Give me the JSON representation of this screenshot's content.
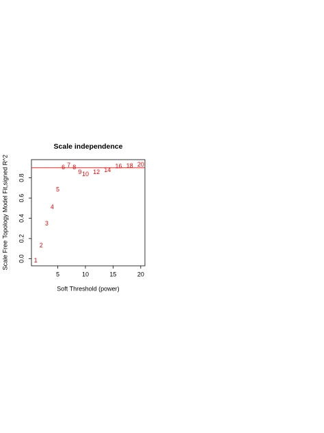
{
  "chart_data": {
    "type": "text-scatter",
    "title": "Scale independence",
    "x_label": "Soft Threshold (power)",
    "y_label": "Scale Free Topology Model Fit,signed R^2",
    "x": [
      1,
      2,
      3,
      4,
      5,
      6,
      7,
      8,
      9,
      10,
      12,
      14,
      16,
      18,
      20
    ],
    "values": [
      -0.02,
      0.13,
      0.345,
      0.51,
      0.68,
      0.9,
      0.92,
      0.9,
      0.855,
      0.835,
      0.855,
      0.875,
      0.91,
      0.915,
      0.93
    ],
    "color": "#ff0000",
    "hline": 0.9,
    "hline_color": "#ff0000",
    "xlim": [
      0.24,
      20.76
    ],
    "ylim": [
      -0.07,
      0.98
    ],
    "xticks": [
      5,
      10,
      15,
      20
    ],
    "yticks": [
      {
        "value": 0,
        "label": "0.0"
      },
      {
        "value": 0.2,
        "label": "0.2"
      },
      {
        "value": 0.4,
        "label": "0.4"
      },
      {
        "value": 0.6,
        "label": "0.6"
      },
      {
        "value": 0.8,
        "label": "0.8"
      }
    ]
  }
}
